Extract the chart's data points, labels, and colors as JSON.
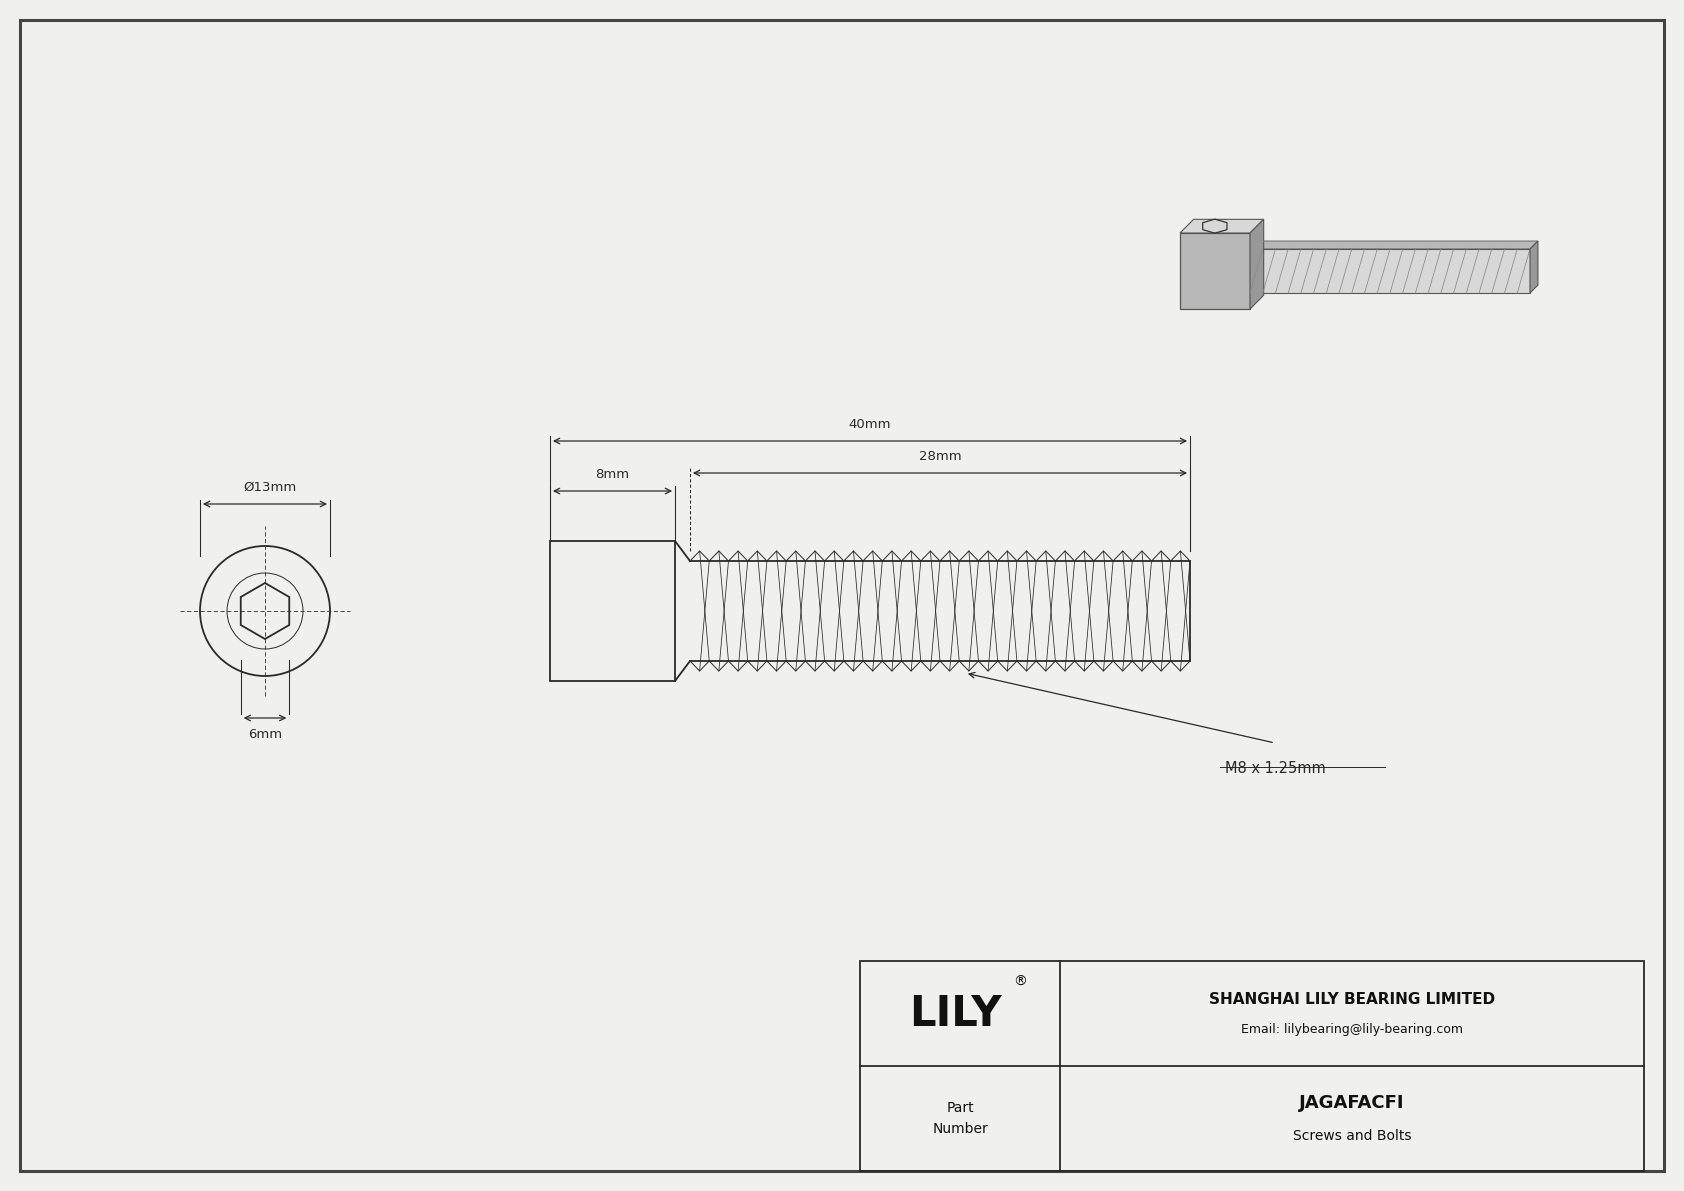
{
  "bg_color": "#f5f5f5",
  "drawing_bg": "#f0f0ee",
  "border_color": "#444444",
  "line_color": "#2a2a2a",
  "dim_color": "#2a2a2a",
  "title_company": "SHANGHAI LILY BEARING LIMITED",
  "title_email": "Email: lilybearing@lily-bearing.com",
  "part_number": "JAGAFACFI",
  "part_category": "Screws and Bolts",
  "part_label": "Part\nNumber",
  "lily_logo": "LILY",
  "dim_diameter": "Ø13mm",
  "dim_hex": "6mm",
  "dim_head_length": "8mm",
  "dim_total_length": "40mm",
  "dim_thread_length": "28mm",
  "dim_thread_spec": "M8 x 1.25mm",
  "page_width": 16.84,
  "page_height": 11.91
}
